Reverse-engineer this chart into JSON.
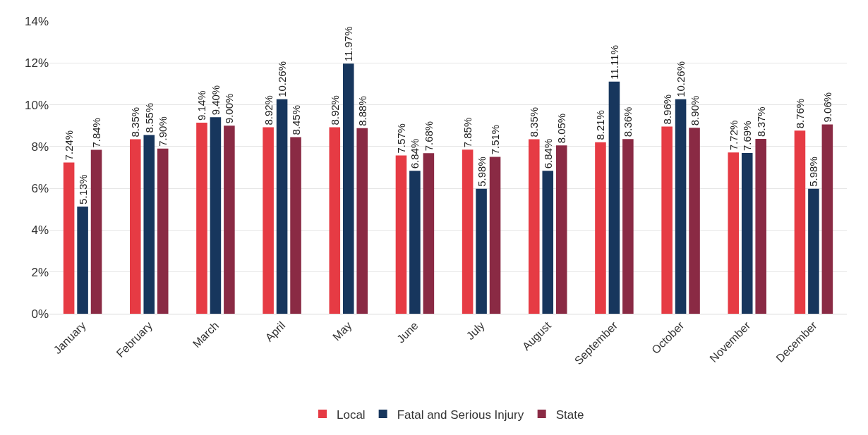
{
  "chart_data": {
    "type": "bar",
    "categories": [
      "January",
      "February",
      "March",
      "April",
      "May",
      "June",
      "July",
      "August",
      "September",
      "October",
      "November",
      "December"
    ],
    "series": [
      {
        "name": "Local",
        "color": "#e63b44",
        "values": [
          7.24,
          8.35,
          9.14,
          8.92,
          8.92,
          7.57,
          7.85,
          8.35,
          8.21,
          8.96,
          7.72,
          8.76
        ],
        "value_labels": [
          "7.24%",
          "8.35%",
          "9.14%",
          "8.92%",
          "8.92%",
          "7.57%",
          "7.85%",
          "8.35%",
          "8.21%",
          "8.96%",
          "7.72%",
          "8.76%"
        ]
      },
      {
        "name": "Fatal and Serious Injury",
        "color": "#17365d",
        "values": [
          5.13,
          8.55,
          9.4,
          10.26,
          11.97,
          6.84,
          5.98,
          6.84,
          11.11,
          10.26,
          7.69,
          5.98
        ],
        "value_labels": [
          "5.13%",
          "8.55%",
          "9.40%",
          "10.26%",
          "11.97%",
          "6.84%",
          "5.98%",
          "6.84%",
          "11.11%",
          "10.26%",
          "7.69%",
          "5.98%"
        ]
      },
      {
        "name": "State",
        "color": "#8a2a44",
        "values": [
          7.84,
          7.9,
          9.0,
          8.45,
          8.88,
          7.68,
          7.51,
          8.05,
          8.36,
          8.9,
          8.37,
          9.06
        ],
        "value_labels": [
          "7.84%",
          "7.90%",
          "9.00%",
          "8.45%",
          "8.88%",
          "7.68%",
          "7.51%",
          "8.05%",
          "8.36%",
          "8.90%",
          "8.37%",
          "9.06%"
        ]
      }
    ],
    "ylim": [
      0,
      14
    ],
    "yticks": [
      {
        "value": 0,
        "label": "0%"
      },
      {
        "value": 2,
        "label": "2%"
      },
      {
        "value": 4,
        "label": "4%"
      },
      {
        "value": 6,
        "label": "6%"
      },
      {
        "value": 8,
        "label": "8%"
      },
      {
        "value": 10,
        "label": "10%"
      },
      {
        "value": 12,
        "label": "12%"
      },
      {
        "value": 14,
        "label": "14%"
      }
    ],
    "grid": "y",
    "legend": "bottom"
  }
}
